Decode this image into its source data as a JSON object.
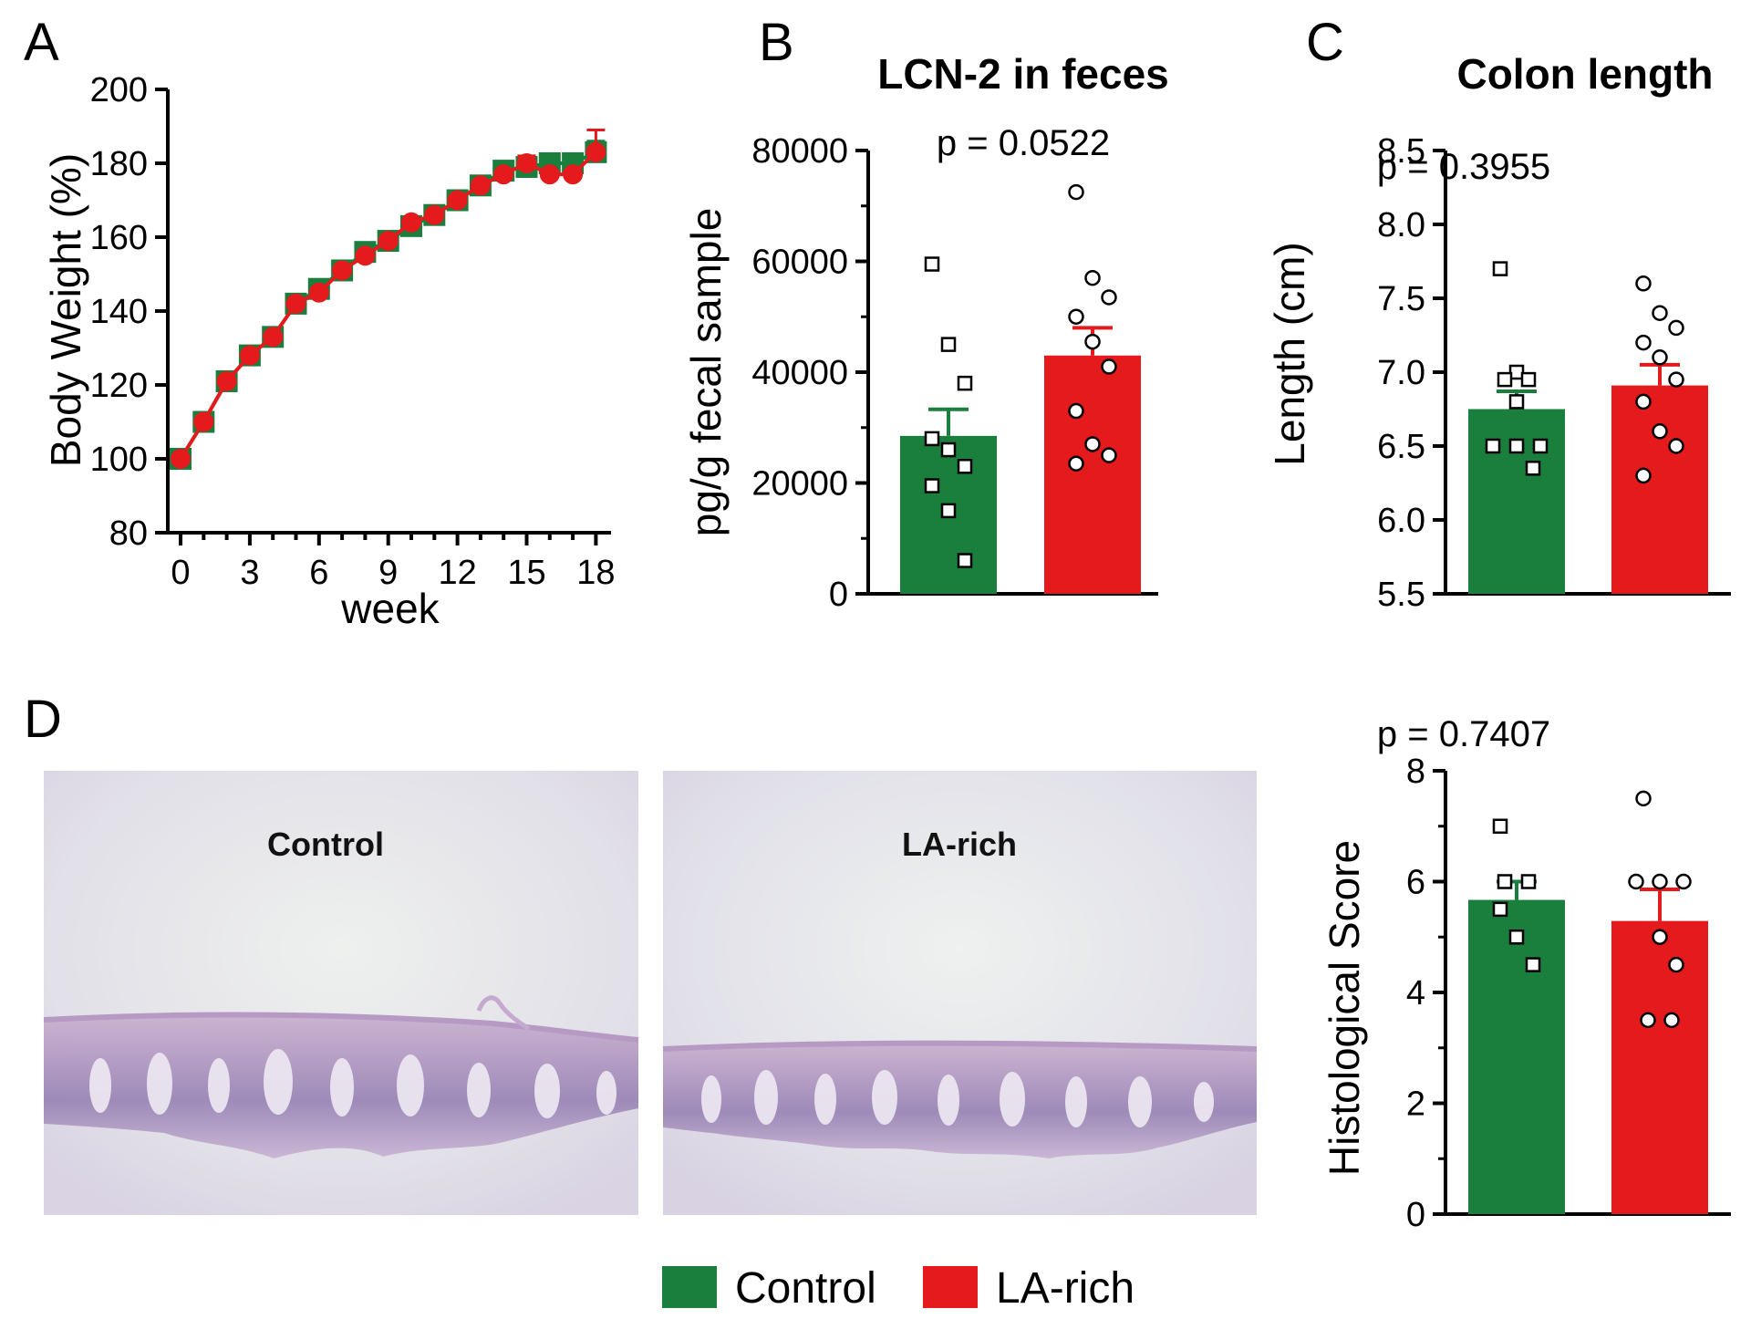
{
  "colors": {
    "control": "#1a7f3c",
    "la_rich": "#e41a1c"
  },
  "panels": {
    "a": "A",
    "b": "B",
    "c": "C",
    "d": "D"
  },
  "legend": {
    "control": "Control",
    "la_rich": "LA-rich"
  },
  "images": {
    "control_label": "Control",
    "la_rich_label": "LA-rich"
  },
  "chart_data": [
    {
      "id": "A",
      "type": "line",
      "title": "",
      "xlabel": "week",
      "ylabel": "Body Weight (%)",
      "xlim": [
        -0.5,
        18.5
      ],
      "ylim": [
        80,
        200
      ],
      "xticks": [
        "0",
        "3",
        "6",
        "9",
        "12",
        "15",
        "18"
      ],
      "yticks": [
        "80",
        "100",
        "120",
        "140",
        "160",
        "180",
        "200"
      ],
      "x": [
        0,
        1,
        2,
        3,
        4,
        5,
        6,
        7,
        8,
        9,
        10,
        11,
        12,
        13,
        14,
        15,
        16,
        17,
        18
      ],
      "series": [
        {
          "name": "Control",
          "marker": "square",
          "values": [
            100,
            110,
            121,
            128,
            133,
            142,
            146,
            151,
            156,
            159,
            163,
            166,
            170,
            174,
            178,
            179,
            180,
            180,
            183
          ],
          "error": [
            0,
            0,
            0,
            0,
            0,
            0,
            0,
            0,
            0,
            0,
            0,
            0,
            0,
            0,
            0,
            0,
            0,
            0,
            3
          ]
        },
        {
          "name": "LA-rich",
          "marker": "circle",
          "values": [
            100,
            110,
            121,
            128,
            133,
            142,
            145,
            151,
            155,
            159,
            164,
            166,
            170,
            174,
            177,
            180,
            177,
            177,
            183
          ],
          "error": [
            0,
            0,
            0,
            0,
            0,
            0,
            0,
            0,
            0,
            0,
            0,
            0,
            0,
            0,
            0,
            2,
            0,
            0,
            6
          ]
        }
      ]
    },
    {
      "id": "B",
      "type": "bar",
      "title": "LCN-2 in feces",
      "annotation": "p = 0.0522",
      "ylabel": "pg/g fecal sample",
      "ylim": [
        0,
        80000
      ],
      "yticks": [
        "0",
        "20000",
        "40000",
        "60000",
        "80000"
      ],
      "categories": [
        "Control",
        "LA-rich"
      ],
      "values": [
        28500,
        43000
      ],
      "sem": [
        4800,
        5000
      ],
      "points": [
        [
          59500,
          45000,
          38000,
          28000,
          26000,
          23000,
          19500,
          15000,
          6000
        ],
        [
          72500,
          57000,
          53500,
          50000,
          45500,
          41000,
          33000,
          27000,
          25000,
          23500
        ]
      ]
    },
    {
      "id": "C",
      "type": "bar",
      "title": "Colon length",
      "annotation": "p = 0.3955",
      "ylabel": "Length (cm)",
      "ylim": [
        5.5,
        8.5
      ],
      "yticks": [
        "5.5",
        "6.0",
        "6.5",
        "7.0",
        "7.5",
        "8.0",
        "8.5"
      ],
      "categories": [
        "Control",
        "LA-rich"
      ],
      "values": [
        6.75,
        6.91
      ],
      "sem": [
        0.12,
        0.14
      ],
      "points": [
        [
          7.7,
          7.0,
          6.95,
          6.95,
          6.8,
          6.5,
          6.5,
          6.5,
          6.35
        ],
        [
          7.6,
          7.4,
          7.3,
          7.2,
          7.1,
          6.95,
          6.8,
          6.6,
          6.5,
          6.3
        ]
      ]
    },
    {
      "id": "D",
      "type": "bar",
      "title": "",
      "annotation": "p = 0.7407",
      "ylabel": "Histological Score",
      "ylim": [
        0,
        8
      ],
      "yticks": [
        "0",
        "2",
        "4",
        "6",
        "8"
      ],
      "categories": [
        "Control",
        "LA-rich"
      ],
      "values": [
        5.67,
        5.29
      ],
      "sem": [
        0.33,
        0.57
      ],
      "points": [
        [
          7,
          6,
          6,
          5.5,
          5,
          4.5
        ],
        [
          7.5,
          6,
          6,
          6,
          5,
          4.5,
          3.5,
          3.5
        ]
      ]
    }
  ]
}
